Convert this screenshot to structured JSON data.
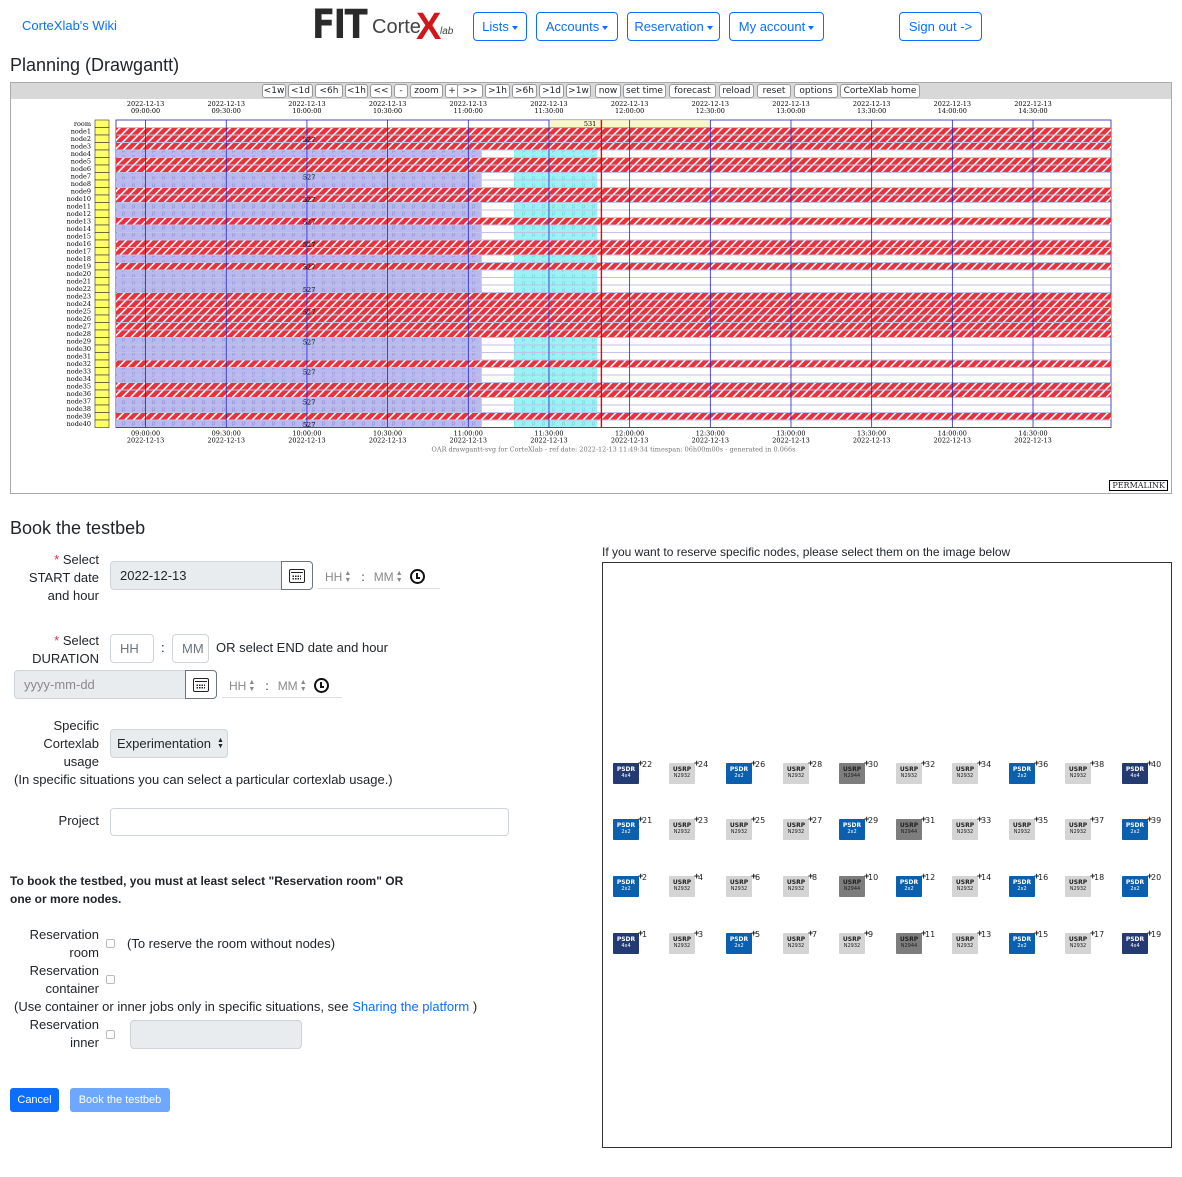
{
  "nav": {
    "wiki": "CorteXlab's Wiki",
    "logo": {
      "fit": "FIT",
      "corte": "Corte",
      "x": "X",
      "lab": "lab"
    },
    "menus": [
      "Lists",
      "Accounts",
      "Reservation",
      "My account"
    ],
    "signout": "Sign out ->"
  },
  "planning": {
    "title": "Planning (Drawgantt)",
    "toolbar": [
      "<1w",
      "<1d",
      "<6h",
      "<1h",
      "<<",
      "-",
      "zoom",
      "+",
      ">>",
      ">1h",
      ">6h",
      ">1d",
      ">1w",
      "now",
      "set time",
      "forecast",
      "reload",
      "reset",
      "options",
      "CorteXlab home"
    ],
    "date": "2022-12-13",
    "times": [
      "09:00:00",
      "09:30:00",
      "10:00:00",
      "10:30:00",
      "11:00:00",
      "11:30:00",
      "12:00:00",
      "12:30:00",
      "13:00:00",
      "13:30:00",
      "14:00:00",
      "14:30:00"
    ],
    "rows": [
      "room",
      "node1",
      "node2",
      "node3",
      "node4",
      "node5",
      "node6",
      "node7",
      "node8",
      "node9",
      "node10",
      "node11",
      "node12",
      "node13",
      "node14",
      "node15",
      "node16",
      "node17",
      "node18",
      "node19",
      "node20",
      "node21",
      "node22",
      "node23",
      "node24",
      "node25",
      "node26",
      "node27",
      "node28",
      "node29",
      "node30",
      "node31",
      "node32",
      "node33",
      "node34",
      "node35",
      "node36",
      "node37",
      "node38",
      "node39",
      "node40"
    ],
    "job_room": "531",
    "job_label": "527",
    "footer": "OAR drawgantt-svg for CorteXlab - ref date: 2022-12-13 11:49:34 timespan: 06h00m00s - generated in 0.066s",
    "permalink": "PERMALINK"
  },
  "book": {
    "title": "Book the testbeb",
    "start_label_1": "Select",
    "start_label_2": "START date",
    "start_label_3": "and hour",
    "start_date": "2022-12-13",
    "hh": "HH",
    "mm": "MM",
    "sep": ":",
    "duration_label_1": "Select",
    "duration_label_2": "DURATION",
    "or_end": "OR select END date and hour",
    "end_date_placeholder": "yyyy-mm-dd",
    "usage_label_1": "Specific",
    "usage_label_2": "Cortexlab",
    "usage_label_3": "usage",
    "usage_value": "Experimentation",
    "usage_note": "(In specific situations you can select a particular cortexlab usage.)",
    "project_label": "Project",
    "notice_1": "To book the testbed, you must at least select \"Reservation room\" OR",
    "notice_2": "one or more nodes.",
    "room_label_1": "Reservation",
    "room_label_2": "room",
    "room_note": "(To reserve the room without nodes)",
    "container_label_1": "Reservation",
    "container_label_2": "container",
    "container_note": "(Use container or inner jobs only in specific situations, see",
    "sharing_link": "Sharing the platform",
    "container_note_end": ")",
    "inner_label_1": "Reservation",
    "inner_label_2": "inner",
    "cancel": "Cancel",
    "submit": "Book the testbeb"
  },
  "nodes": {
    "title": "If you want to reserve specific nodes, please select them on the image below",
    "rows": [
      [
        {
          "n": "22",
          "t": "PSDR",
          "s": "4x4"
        },
        {
          "n": "24",
          "t": "USRP",
          "s": "N2932"
        },
        {
          "n": "26",
          "t": "PSDR",
          "s": "2x2"
        },
        {
          "n": "28",
          "t": "USRP",
          "s": "N2932"
        },
        {
          "n": "30",
          "t": "USRP",
          "s": "N2944"
        },
        {
          "n": "32",
          "t": "USRP",
          "s": "N2932"
        },
        {
          "n": "34",
          "t": "USRP",
          "s": "N2932"
        },
        {
          "n": "36",
          "t": "PSDR",
          "s": "2x2"
        },
        {
          "n": "38",
          "t": "USRP",
          "s": "N2932"
        },
        {
          "n": "40",
          "t": "PSDR",
          "s": "4x4"
        }
      ],
      [
        {
          "n": "21",
          "t": "PSDR",
          "s": "2x2"
        },
        {
          "n": "23",
          "t": "USRP",
          "s": "N2932"
        },
        {
          "n": "25",
          "t": "USRP",
          "s": "N2932"
        },
        {
          "n": "27",
          "t": "USRP",
          "s": "N2932"
        },
        {
          "n": "29",
          "t": "PSDR",
          "s": "2x2"
        },
        {
          "n": "31",
          "t": "USRP",
          "s": "N2944"
        },
        {
          "n": "33",
          "t": "USRP",
          "s": "N2932"
        },
        {
          "n": "35",
          "t": "USRP",
          "s": "N2932"
        },
        {
          "n": "37",
          "t": "USRP",
          "s": "N2932"
        },
        {
          "n": "39",
          "t": "PSDR",
          "s": "2x2"
        }
      ],
      [
        {
          "n": "2",
          "t": "PSDR",
          "s": "2x2"
        },
        {
          "n": "4",
          "t": "USRP",
          "s": "N2932"
        },
        {
          "n": "6",
          "t": "USRP",
          "s": "N2932"
        },
        {
          "n": "8",
          "t": "USRP",
          "s": "N2932"
        },
        {
          "n": "10",
          "t": "USRP",
          "s": "N2944"
        },
        {
          "n": "12",
          "t": "PSDR",
          "s": "2x2"
        },
        {
          "n": "14",
          "t": "USRP",
          "s": "N2932"
        },
        {
          "n": "16",
          "t": "PSDR",
          "s": "2x2"
        },
        {
          "n": "18",
          "t": "USRP",
          "s": "N2932"
        },
        {
          "n": "20",
          "t": "PSDR",
          "s": "2x2"
        }
      ],
      [
        {
          "n": "1",
          "t": "PSDR",
          "s": "4x4"
        },
        {
          "n": "3",
          "t": "USRP",
          "s": "N2932"
        },
        {
          "n": "5",
          "t": "PSDR",
          "s": "2x2"
        },
        {
          "n": "7",
          "t": "USRP",
          "s": "N2932"
        },
        {
          "n": "9",
          "t": "USRP",
          "s": "N2932"
        },
        {
          "n": "11",
          "t": "USRP",
          "s": "N2944"
        },
        {
          "n": "13",
          "t": "USRP",
          "s": "N2932"
        },
        {
          "n": "15",
          "t": "PSDR",
          "s": "2x2"
        },
        {
          "n": "17",
          "t": "USRP",
          "s": "N2932"
        },
        {
          "n": "19",
          "t": "PSDR",
          "s": "4x4"
        }
      ]
    ]
  },
  "colors": {
    "primary": "#0d6efd",
    "psdr_4x4": "#243a73",
    "psdr_2x2": "#0a5fae",
    "usrp_n2932": "#d4d4d4",
    "usrp_n2944": "#7d7d7d",
    "gantt_red": "#e8313c",
    "gantt_blue": "#b9b9f0",
    "gantt_cyan": "#9cf1f5"
  }
}
